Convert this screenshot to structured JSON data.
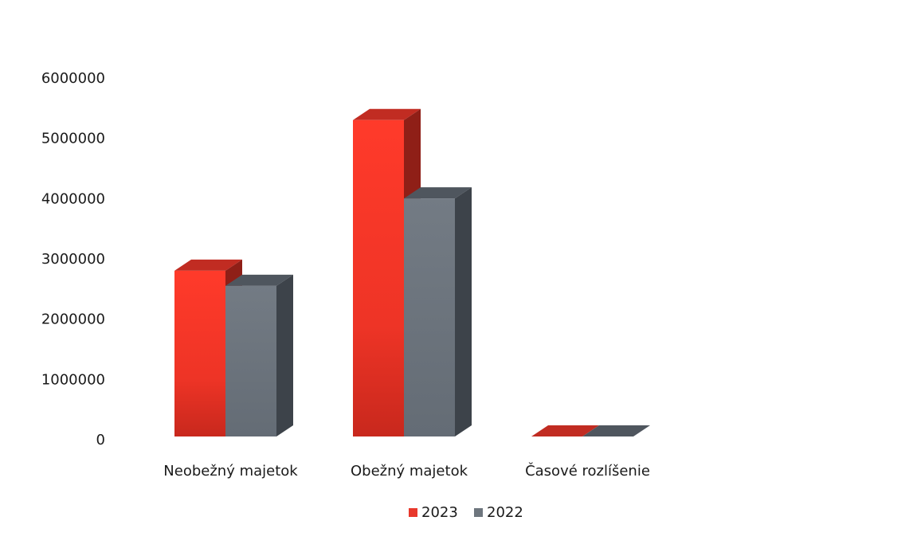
{
  "chart_data": {
    "type": "bar",
    "categories": [
      "Neobežný majetok",
      "Obežný majetok",
      "Časové rozlíšenie"
    ],
    "series": [
      {
        "name": "2023",
        "values": [
          2750000,
          5250000,
          0
        ],
        "color": "#e8382c"
      },
      {
        "name": "2022",
        "values": [
          2500000,
          3950000,
          0
        ],
        "color": "#6e767e"
      }
    ],
    "y_ticks": [
      "0",
      "1000000",
      "2000000",
      "3000000",
      "4000000",
      "5000000",
      "6000000"
    ],
    "ylim": [
      0,
      6000000
    ],
    "legend_position": "bottom",
    "style": "3d-column",
    "grid": false
  }
}
